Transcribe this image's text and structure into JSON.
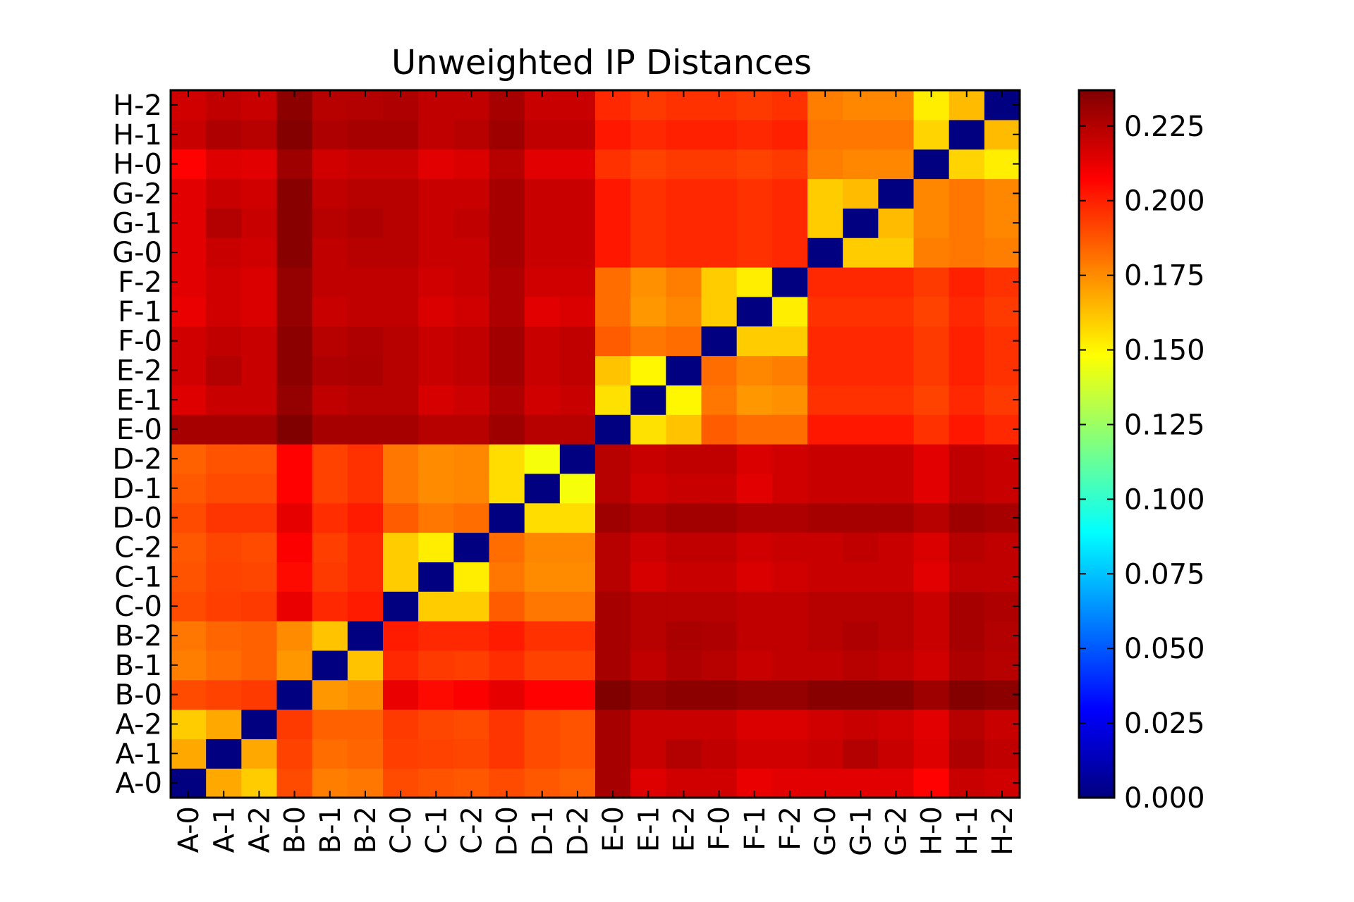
{
  "chart_data": {
    "type": "heatmap",
    "title": "Unweighted IP Distances",
    "xlabel": "",
    "ylabel": "",
    "labels": [
      "A-0",
      "A-1",
      "A-2",
      "B-0",
      "B-1",
      "B-2",
      "C-0",
      "C-1",
      "C-2",
      "D-0",
      "D-1",
      "D-2",
      "E-0",
      "E-1",
      "E-2",
      "F-0",
      "F-1",
      "F-2",
      "G-0",
      "G-1",
      "G-2",
      "H-0",
      "H-1",
      "H-2"
    ],
    "colormap": "jet",
    "colorbar": {
      "min": 0.0,
      "max": 0.237,
      "ticks": [
        0.0,
        0.025,
        0.05,
        0.075,
        0.1,
        0.125,
        0.15,
        0.175,
        0.2,
        0.225
      ],
      "tick_labels": [
        "0.000",
        "0.025",
        "0.050",
        "0.075",
        "0.100",
        "0.125",
        "0.150",
        "0.175",
        "0.200",
        "0.225"
      ]
    },
    "origin": "lower-left",
    "rows": [
      [
        0.0,
        0.168,
        0.16,
        0.19,
        0.178,
        0.18,
        0.19,
        0.188,
        0.187,
        0.19,
        0.187,
        0.185,
        0.228,
        0.215,
        0.218,
        0.218,
        0.212,
        0.214,
        0.214,
        0.214,
        0.214,
        0.207,
        0.22,
        0.218
      ],
      [
        0.168,
        0.0,
        0.168,
        0.192,
        0.182,
        0.184,
        0.193,
        0.192,
        0.191,
        0.195,
        0.19,
        0.188,
        0.228,
        0.22,
        0.225,
        0.222,
        0.218,
        0.218,
        0.22,
        0.225,
        0.22,
        0.215,
        0.226,
        0.222
      ],
      [
        0.16,
        0.168,
        0.0,
        0.194,
        0.185,
        0.185,
        0.194,
        0.191,
        0.19,
        0.195,
        0.19,
        0.188,
        0.228,
        0.22,
        0.22,
        0.22,
        0.216,
        0.216,
        0.218,
        0.22,
        0.218,
        0.214,
        0.224,
        0.22
      ],
      [
        0.19,
        0.192,
        0.194,
        0.0,
        0.172,
        0.175,
        0.212,
        0.205,
        0.208,
        0.213,
        0.207,
        0.207,
        0.237,
        0.232,
        0.234,
        0.234,
        0.232,
        0.232,
        0.235,
        0.235,
        0.235,
        0.23,
        0.236,
        0.234
      ],
      [
        0.178,
        0.182,
        0.185,
        0.172,
        0.0,
        0.162,
        0.198,
        0.194,
        0.193,
        0.197,
        0.192,
        0.192,
        0.228,
        0.222,
        0.226,
        0.224,
        0.22,
        0.222,
        0.222,
        0.224,
        0.222,
        0.218,
        0.226,
        0.224
      ],
      [
        0.18,
        0.184,
        0.185,
        0.175,
        0.162,
        0.0,
        0.201,
        0.198,
        0.198,
        0.201,
        0.196,
        0.196,
        0.228,
        0.224,
        0.227,
        0.226,
        0.222,
        0.222,
        0.224,
        0.226,
        0.224,
        0.22,
        0.228,
        0.225
      ],
      [
        0.19,
        0.193,
        0.194,
        0.212,
        0.198,
        0.201,
        0.0,
        0.16,
        0.16,
        0.186,
        0.18,
        0.18,
        0.228,
        0.224,
        0.224,
        0.224,
        0.222,
        0.222,
        0.224,
        0.224,
        0.224,
        0.22,
        0.228,
        0.226
      ],
      [
        0.188,
        0.192,
        0.191,
        0.205,
        0.194,
        0.198,
        0.16,
        0.0,
        0.152,
        0.18,
        0.175,
        0.175,
        0.224,
        0.217,
        0.22,
        0.22,
        0.216,
        0.218,
        0.22,
        0.22,
        0.22,
        0.214,
        0.222,
        0.222
      ],
      [
        0.187,
        0.191,
        0.19,
        0.208,
        0.193,
        0.198,
        0.16,
        0.152,
        0.0,
        0.182,
        0.176,
        0.176,
        0.224,
        0.219,
        0.222,
        0.222,
        0.218,
        0.22,
        0.22,
        0.222,
        0.22,
        0.216,
        0.224,
        0.222
      ],
      [
        0.19,
        0.195,
        0.195,
        0.213,
        0.197,
        0.201,
        0.186,
        0.18,
        0.182,
        0.0,
        0.156,
        0.156,
        0.23,
        0.226,
        0.229,
        0.229,
        0.226,
        0.226,
        0.228,
        0.228,
        0.228,
        0.224,
        0.23,
        0.228
      ],
      [
        0.187,
        0.19,
        0.19,
        0.207,
        0.192,
        0.196,
        0.18,
        0.175,
        0.176,
        0.156,
        0.0,
        0.146,
        0.224,
        0.218,
        0.22,
        0.22,
        0.214,
        0.218,
        0.22,
        0.22,
        0.22,
        0.214,
        0.222,
        0.22
      ],
      [
        0.185,
        0.188,
        0.188,
        0.207,
        0.192,
        0.196,
        0.18,
        0.175,
        0.176,
        0.156,
        0.146,
        0.0,
        0.224,
        0.22,
        0.222,
        0.222,
        0.216,
        0.218,
        0.22,
        0.22,
        0.22,
        0.214,
        0.222,
        0.22
      ],
      [
        0.228,
        0.228,
        0.228,
        0.237,
        0.228,
        0.228,
        0.228,
        0.224,
        0.224,
        0.23,
        0.224,
        0.224,
        0.0,
        0.155,
        0.162,
        0.186,
        0.182,
        0.182,
        0.202,
        0.202,
        0.202,
        0.196,
        0.202,
        0.198
      ],
      [
        0.215,
        0.22,
        0.22,
        0.232,
        0.222,
        0.224,
        0.224,
        0.217,
        0.219,
        0.226,
        0.218,
        0.22,
        0.155,
        0.0,
        0.15,
        0.18,
        0.172,
        0.174,
        0.196,
        0.196,
        0.196,
        0.192,
        0.198,
        0.194
      ],
      [
        0.218,
        0.225,
        0.22,
        0.234,
        0.226,
        0.227,
        0.224,
        0.22,
        0.222,
        0.229,
        0.22,
        0.222,
        0.162,
        0.15,
        0.0,
        0.182,
        0.176,
        0.178,
        0.198,
        0.198,
        0.198,
        0.194,
        0.2,
        0.196
      ],
      [
        0.218,
        0.222,
        0.22,
        0.234,
        0.224,
        0.226,
        0.224,
        0.22,
        0.222,
        0.229,
        0.22,
        0.222,
        0.186,
        0.18,
        0.182,
        0.0,
        0.16,
        0.16,
        0.198,
        0.198,
        0.198,
        0.194,
        0.2,
        0.196
      ],
      [
        0.212,
        0.218,
        0.216,
        0.232,
        0.22,
        0.222,
        0.222,
        0.216,
        0.218,
        0.226,
        0.214,
        0.216,
        0.182,
        0.172,
        0.176,
        0.16,
        0.0,
        0.152,
        0.196,
        0.196,
        0.196,
        0.192,
        0.198,
        0.194
      ],
      [
        0.214,
        0.218,
        0.216,
        0.232,
        0.222,
        0.222,
        0.222,
        0.218,
        0.22,
        0.226,
        0.218,
        0.218,
        0.182,
        0.174,
        0.178,
        0.16,
        0.152,
        0.0,
        0.198,
        0.198,
        0.198,
        0.194,
        0.2,
        0.196
      ],
      [
        0.214,
        0.22,
        0.218,
        0.235,
        0.222,
        0.224,
        0.224,
        0.22,
        0.22,
        0.228,
        0.22,
        0.22,
        0.202,
        0.196,
        0.198,
        0.198,
        0.196,
        0.198,
        0.0,
        0.16,
        0.16,
        0.178,
        0.18,
        0.178
      ],
      [
        0.214,
        0.225,
        0.22,
        0.235,
        0.224,
        0.226,
        0.224,
        0.22,
        0.222,
        0.228,
        0.22,
        0.22,
        0.202,
        0.196,
        0.198,
        0.198,
        0.196,
        0.198,
        0.16,
        0.0,
        0.164,
        0.176,
        0.18,
        0.176
      ],
      [
        0.214,
        0.22,
        0.218,
        0.235,
        0.222,
        0.224,
        0.224,
        0.22,
        0.22,
        0.228,
        0.22,
        0.22,
        0.202,
        0.196,
        0.198,
        0.198,
        0.196,
        0.198,
        0.16,
        0.164,
        0.0,
        0.176,
        0.18,
        0.176
      ],
      [
        0.207,
        0.215,
        0.214,
        0.23,
        0.218,
        0.22,
        0.22,
        0.214,
        0.216,
        0.224,
        0.214,
        0.214,
        0.196,
        0.192,
        0.194,
        0.194,
        0.192,
        0.194,
        0.178,
        0.176,
        0.176,
        0.0,
        0.158,
        0.152
      ],
      [
        0.22,
        0.226,
        0.224,
        0.236,
        0.226,
        0.228,
        0.228,
        0.222,
        0.224,
        0.23,
        0.222,
        0.222,
        0.202,
        0.198,
        0.2,
        0.2,
        0.198,
        0.2,
        0.18,
        0.18,
        0.18,
        0.158,
        0.0,
        0.164
      ],
      [
        0.218,
        0.222,
        0.22,
        0.234,
        0.224,
        0.225,
        0.226,
        0.222,
        0.222,
        0.228,
        0.22,
        0.22,
        0.198,
        0.194,
        0.196,
        0.196,
        0.194,
        0.196,
        0.178,
        0.176,
        0.176,
        0.152,
        0.164,
        0.0
      ]
    ]
  }
}
